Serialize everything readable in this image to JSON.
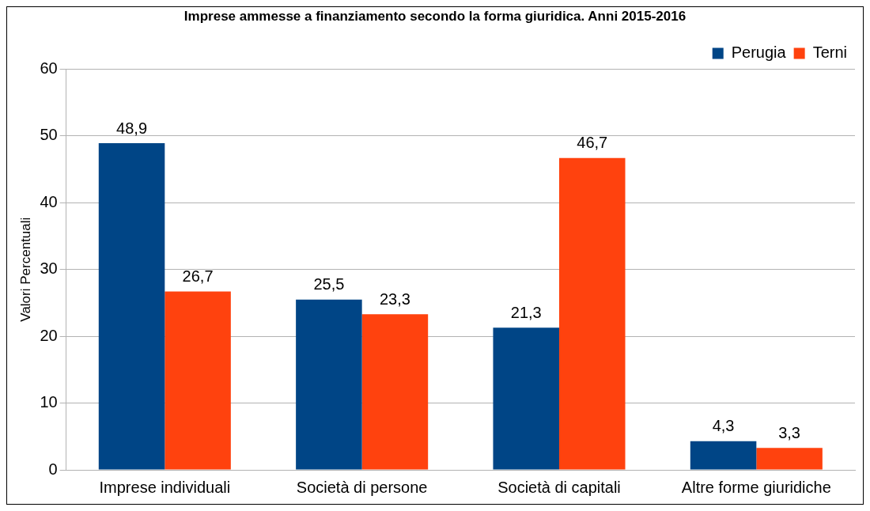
{
  "chart_data": {
    "type": "bar",
    "title": "Imprese ammesse a finanziamento secondo la forma giuridica. Anni 2015-2016",
    "ylabel": "Valori Percentuali",
    "categories": [
      "Imprese individuali",
      "Società di persone",
      "Società di capitali",
      "Altre forme giuridiche"
    ],
    "series": [
      {
        "name": "Perugia",
        "color": "#004586",
        "values": [
          48.9,
          25.5,
          21.3,
          4.3
        ],
        "value_labels": [
          "48,9",
          "25,5",
          "21,3",
          "4,3"
        ]
      },
      {
        "name": "Terni",
        "color": "#ff420e",
        "values": [
          26.7,
          23.3,
          46.7,
          3.3
        ],
        "value_labels": [
          "26,7",
          "23,3",
          "46,7",
          "3,3"
        ]
      }
    ],
    "ylim": [
      0,
      60
    ],
    "yticks": [
      0,
      10,
      20,
      30,
      40,
      50,
      60
    ],
    "grid": "y",
    "legend": "top right"
  }
}
